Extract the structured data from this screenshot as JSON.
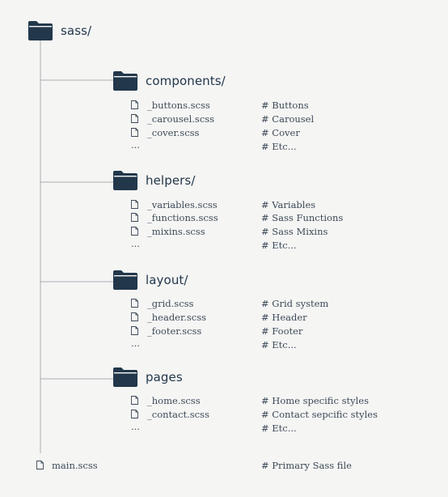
{
  "root": {
    "name": "sass/",
    "icon": "folder-icon"
  },
  "folders": [
    {
      "name": "components/",
      "files": [
        {
          "name": "_buttons.scss",
          "comment": "# Buttons"
        },
        {
          "name": "_carousel.scss",
          "comment": "# Carousel"
        },
        {
          "name": "_cover.scss",
          "comment": "# Cover"
        }
      ],
      "more": {
        "name": "...",
        "comment": "# Etc..."
      }
    },
    {
      "name": "helpers/",
      "files": [
        {
          "name": "_variables.scss",
          "comment": "# Variables"
        },
        {
          "name": "_functions.scss",
          "comment": "# Sass Functions"
        },
        {
          "name": "_mixins.scss",
          "comment": "# Sass Mixins"
        }
      ],
      "more": {
        "name": "...",
        "comment": "# Etc..."
      }
    },
    {
      "name": "layout/",
      "files": [
        {
          "name": "_grid.scss",
          "comment": "# Grid system"
        },
        {
          "name": "_header.scss",
          "comment": "# Header"
        },
        {
          "name": "_footer.scss",
          "comment": "# Footer"
        }
      ],
      "more": {
        "name": "...",
        "comment": "# Etc..."
      }
    },
    {
      "name": "pages",
      "files": [
        {
          "name": "_home.scss",
          "comment": "# Home specific styles"
        },
        {
          "name": "_contact.scss",
          "comment": "# Contact sepcific styles"
        }
      ],
      "more": {
        "name": "...",
        "comment": "# Etc..."
      }
    }
  ],
  "main_file": {
    "name": "main.scss",
    "comment": "# Primary Sass file"
  },
  "colors": {
    "folder": "#22374a",
    "line": "#a9adb0",
    "text": "#3d4a57",
    "background": "#f5f5f4"
  }
}
